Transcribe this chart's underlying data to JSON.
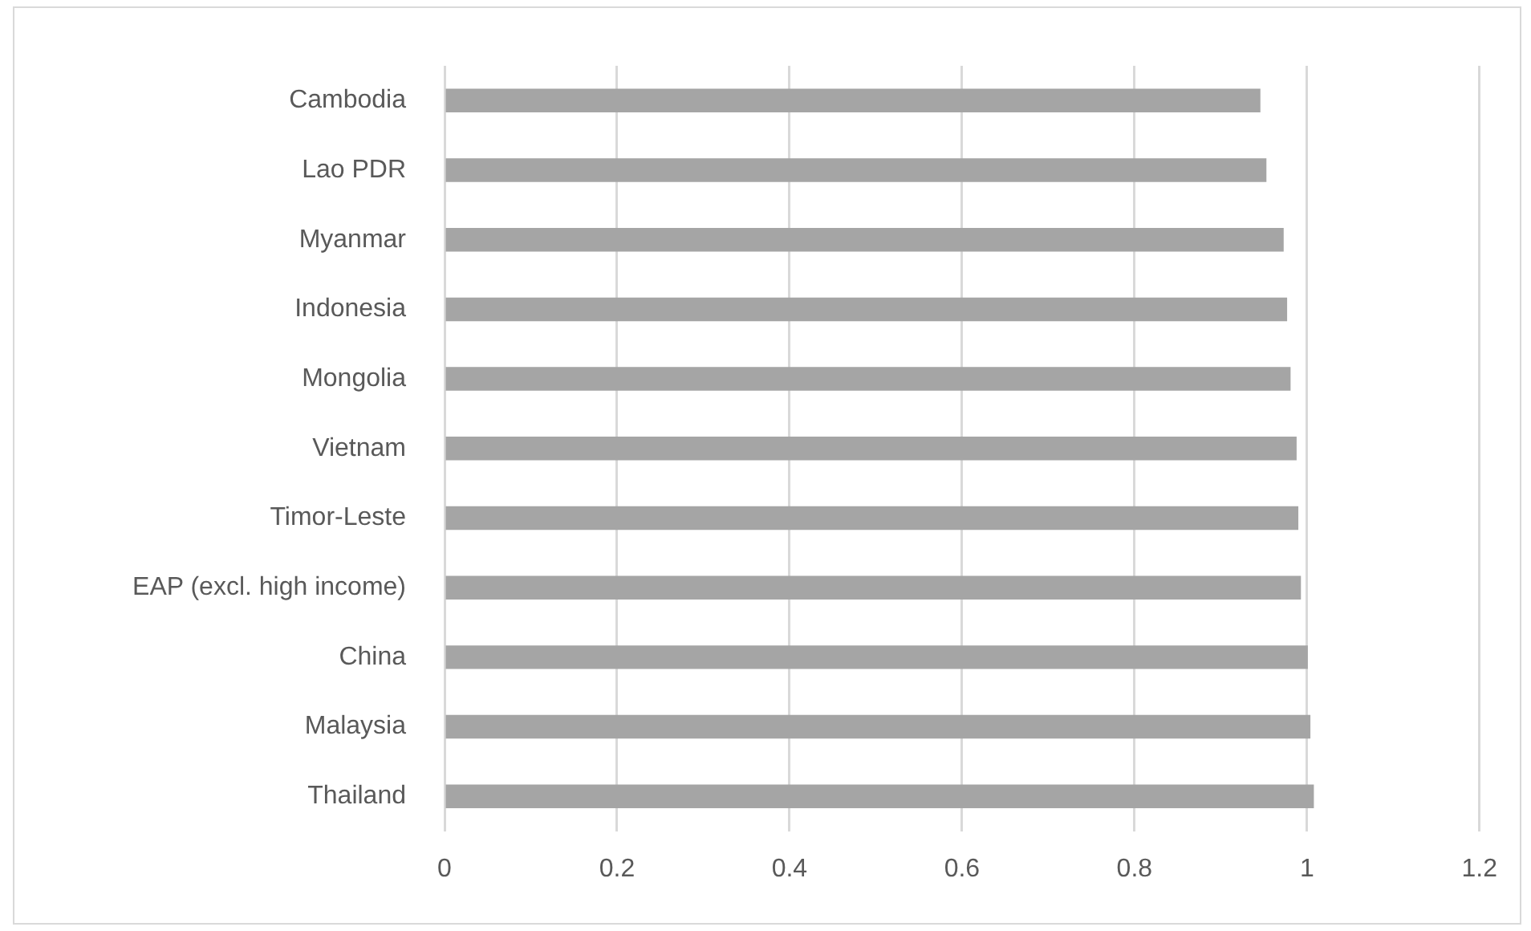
{
  "chart_data": {
    "type": "bar",
    "orientation": "horizontal",
    "categories": [
      "Cambodia",
      "Lao PDR",
      "Myanmar",
      "Indonesia",
      "Mongolia",
      "Vietnam",
      "Timor-Leste",
      "EAP (excl. high income)",
      "China",
      "Malaysia",
      "Thailand"
    ],
    "values": [
      0.946,
      0.953,
      0.973,
      0.977,
      0.981,
      0.988,
      0.99,
      0.993,
      1.001,
      1.004,
      1.008
    ],
    "color": "#a5a5a5",
    "xlim": [
      0,
      1.2
    ],
    "xticks": [
      0,
      0.2,
      0.4,
      0.6,
      0.8,
      1,
      1.2
    ],
    "grid": "x",
    "legend": false
  }
}
